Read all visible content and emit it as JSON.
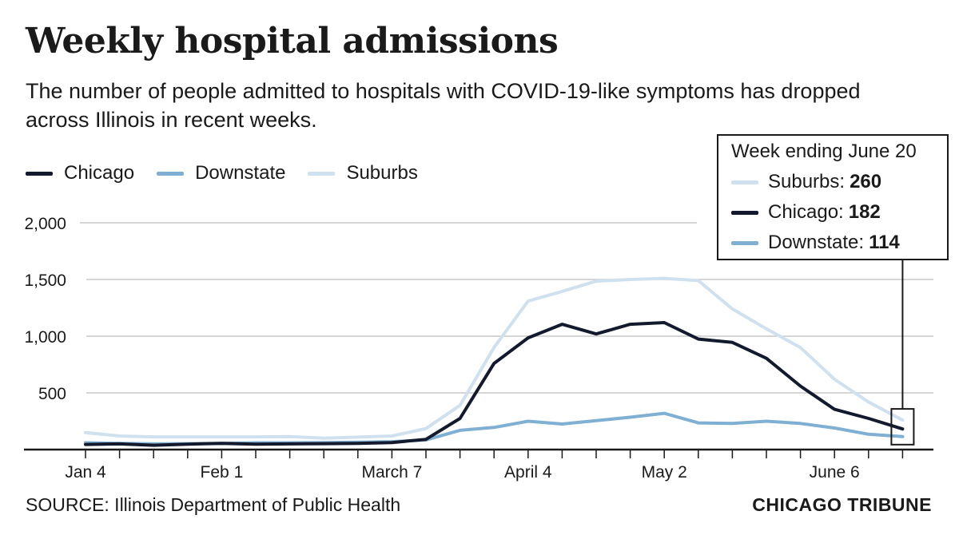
{
  "colors": {
    "Chicago": "#141a2e",
    "Downstate": "#7fb0d3",
    "Suburbs": "#cfe1ef",
    "grid": "#c8c8c8",
    "axis": "#1a1a1a"
  },
  "chart_data": {
    "type": "line",
    "title": "Weekly hospital admissions",
    "subtitle": "The number of people admitted to hospitals with COVID-19-like symptoms has dropped across Illinois in recent weeks.",
    "xlabel": "",
    "ylabel": "",
    "ylim": [
      0,
      2000
    ],
    "yticks": [
      {
        "value": 500,
        "label": "500"
      },
      {
        "value": 1000,
        "label": "1,000"
      },
      {
        "value": 1500,
        "label": "1,500"
      },
      {
        "value": 2000,
        "label": "2,000"
      }
    ],
    "xticks": [
      {
        "index": 0,
        "label": "Jan 4"
      },
      {
        "index": 4,
        "label": "Feb 1"
      },
      {
        "index": 9,
        "label": "March 7"
      },
      {
        "index": 13,
        "label": "April 4"
      },
      {
        "index": 17,
        "label": "May 2"
      },
      {
        "index": 22,
        "label": "June 6"
      }
    ],
    "weeks": 25,
    "grid": true,
    "legend_position": "top-left",
    "series": [
      {
        "name": "Suburbs",
        "values": [
          150,
          120,
          112,
          112,
          112,
          112,
          115,
          100,
          110,
          120,
          185,
          390,
          900,
          1310,
          1395,
          1485,
          1500,
          1510,
          1490,
          1240,
          1065,
          900,
          620,
          420,
          260
        ]
      },
      {
        "name": "Downstate",
        "values": [
          60,
          55,
          50,
          52,
          55,
          60,
          60,
          62,
          65,
          70,
          85,
          170,
          195,
          250,
          225,
          255,
          285,
          320,
          235,
          230,
          250,
          230,
          190,
          135,
          114
        ]
      },
      {
        "name": "Chicago",
        "values": [
          45,
          50,
          38,
          48,
          55,
          48,
          50,
          52,
          55,
          62,
          90,
          275,
          760,
          985,
          1105,
          1020,
          1105,
          1120,
          975,
          945,
          805,
          560,
          355,
          275,
          182
        ]
      }
    ],
    "callout": {
      "heading": "Week ending June 20",
      "entries": [
        {
          "name": "Suburbs",
          "label": "Suburbs:",
          "value": "260"
        },
        {
          "name": "Chicago",
          "label": "Chicago:",
          "value": "182"
        },
        {
          "name": "Downstate",
          "label": "Downstate:",
          "value": "114"
        }
      ]
    }
  },
  "legend": [
    "Chicago",
    "Downstate",
    "Suburbs"
  ],
  "footer": {
    "source": "SOURCE: Illinois Department of Public Health",
    "brand": "CHICAGO TRIBUNE"
  }
}
